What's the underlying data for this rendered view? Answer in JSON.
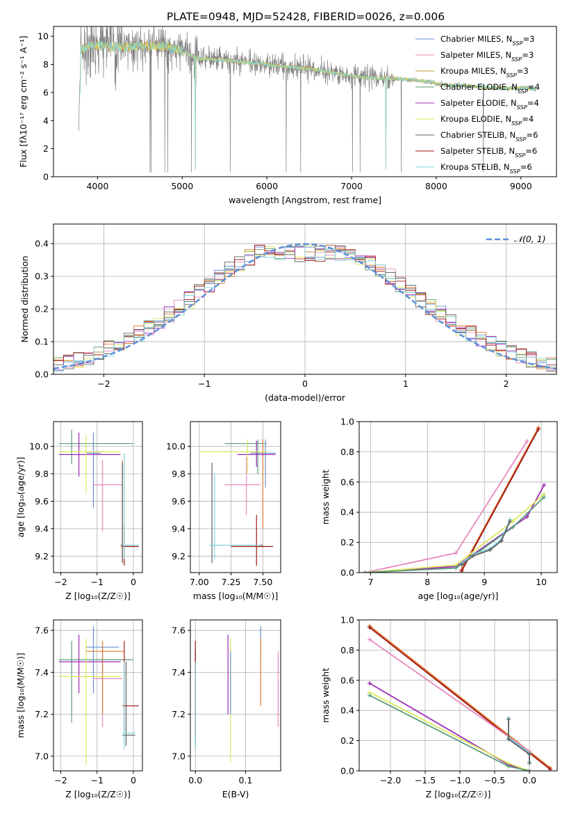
{
  "title": "PLATE=0948, MJD=52428, FIBERID=0026, z=0.006",
  "colors": {
    "chabrier_miles": "#6a8fd8",
    "salpeter_miles": "#e887bd",
    "kroupa_miles": "#c49a36",
    "chabrier_elodie": "#5a9a78",
    "salpeter_elodie": "#9c2ab4",
    "kroupa_elodie": "#dce85a",
    "chabrier_stelib": "#606060",
    "salpeter_stelib": "#a01616",
    "kroupa_stelib": "#80d4d8",
    "normal": "#5b8fd8",
    "orange": "#e0782c"
  },
  "chart_data": [
    {
      "id": "spectrum",
      "type": "line",
      "xlabel": "wavelength [Angstrom, rest frame]",
      "ylabel": "Flux [fλ10⁻¹⁷ erg cm⁻² s⁻¹ A⁻¹]",
      "xlim": [
        3480,
        9420
      ],
      "ylim": [
        0,
        10.7
      ],
      "xticks": [
        4000,
        5000,
        6000,
        7000,
        8000,
        9000
      ],
      "yticks": [
        0,
        2,
        4,
        6,
        8,
        10
      ],
      "grid": false,
      "legend_position": "top-right",
      "continuum": [
        [
          3800,
          9.0
        ],
        [
          3900,
          9.3
        ],
        [
          4000,
          9.4
        ],
        [
          4100,
          9.3
        ],
        [
          4300,
          9.2
        ],
        [
          4500,
          9.3
        ],
        [
          4800,
          9.3
        ],
        [
          5000,
          8.9
        ],
        [
          5200,
          8.4
        ],
        [
          5500,
          8.3
        ],
        [
          5800,
          8.1
        ],
        [
          6000,
          8.0
        ],
        [
          6300,
          7.8
        ],
        [
          6500,
          7.7
        ],
        [
          6700,
          7.5
        ],
        [
          6900,
          7.3
        ],
        [
          7100,
          7.1
        ],
        [
          7300,
          7.0
        ],
        [
          7500,
          7.0
        ],
        [
          7700,
          6.9
        ],
        [
          7900,
          6.8
        ],
        [
          8100,
          6.5
        ],
        [
          8300,
          6.5
        ],
        [
          8500,
          6.4
        ],
        [
          8700,
          6.3
        ],
        [
          8900,
          6.3
        ],
        [
          9100,
          6.3
        ],
        [
          9180,
          6.2
        ]
      ],
      "legend": [
        {
          "label": "Chabrier MILES, N",
          "sub": "SSP",
          "suffix": "=3",
          "color": "#6a8fd8"
        },
        {
          "label": "Salpeter MILES, N",
          "sub": "SSP",
          "suffix": "=3",
          "color": "#e887bd"
        },
        {
          "label": "Kroupa MILES, N",
          "sub": "SSP",
          "suffix": "=3",
          "color": "#c49a36"
        },
        {
          "label": "Chabrier ELODIE, N",
          "sub": "SSP",
          "suffix": "=4",
          "color": "#5a9a78"
        },
        {
          "label": "Salpeter ELODIE, N",
          "sub": "SSP",
          "suffix": "=4",
          "color": "#9c2ab4"
        },
        {
          "label": "Kroupa ELODIE, N",
          "sub": "SSP",
          "suffix": "=4",
          "color": "#dce85a"
        },
        {
          "label": "Chabrier STELIB, N",
          "sub": "SSP",
          "suffix": "=6",
          "color": "#606060"
        },
        {
          "label": "Salpeter STELIB, N",
          "sub": "SSP",
          "suffix": "=6",
          "color": "#a01616"
        },
        {
          "label": "Kroupa STELIB, N",
          "sub": "SSP",
          "suffix": "=6",
          "color": "#80d4d8"
        }
      ]
    },
    {
      "id": "residuals",
      "type": "histogram",
      "xlabel": "(data-model)/error",
      "ylabel": "Normed distribution",
      "xlim": [
        -2.5,
        2.5
      ],
      "ylim": [
        0,
        0.46
      ],
      "xticks": [
        -2,
        -1,
        0,
        1,
        2
      ],
      "yticks": [
        0.0,
        0.1,
        0.2,
        0.3,
        0.4
      ],
      "grid": true,
      "bin_width": 0.1,
      "legend_position": "top-right",
      "legend_label": "𝒩(0, 1)"
    },
    {
      "id": "age_vs_Z",
      "type": "errorbar",
      "xlabel": "Z [log₁₀(Z/Z☉)]",
      "ylabel": "age  [log₁₀(age/yr)]",
      "xlim": [
        -2.2,
        0.25
      ],
      "ylim": [
        9.08,
        10.18
      ],
      "xticks": [
        -2,
        -1,
        0
      ],
      "yticks": [
        9.2,
        9.4,
        9.6,
        9.8,
        10.0
      ],
      "grid": true,
      "points": [
        {
          "color": "#6a8fd8",
          "x": -1.1,
          "xlo": -1.3,
          "xhi": -0.9,
          "y": 9.95,
          "ylo": 9.55,
          "yhi": 10.1
        },
        {
          "color": "#e887bd",
          "x": -0.85,
          "xlo": -1.1,
          "xhi": -0.3,
          "y": 9.72,
          "ylo": 9.38,
          "yhi": 9.9
        },
        {
          "color": "#e0782c",
          "x": -0.3,
          "xlo": -0.35,
          "xhi": -0.25,
          "y": 9.27,
          "ylo": 9.15,
          "yhi": 9.9
        },
        {
          "color": "#5a9a78",
          "x": -1.7,
          "xlo": -2.05,
          "xhi": 0.0,
          "y": 10.02,
          "ylo": 9.87,
          "yhi": 10.12
        },
        {
          "color": "#9c2ab4",
          "x": -1.5,
          "xlo": -2.05,
          "xhi": -0.35,
          "y": 9.94,
          "ylo": 9.78,
          "yhi": 10.1
        },
        {
          "color": "#dce85a",
          "x": -1.3,
          "xlo": -2.05,
          "xhi": -0.35,
          "y": 9.96,
          "ylo": 9.66,
          "yhi": 10.08
        },
        {
          "color": "#606060",
          "x": -0.3,
          "xlo": -0.35,
          "xhi": 0.05,
          "y": 9.28,
          "ylo": 9.15,
          "yhi": 9.88
        },
        {
          "color": "#a01616",
          "x": -0.25,
          "xlo": -0.3,
          "xhi": 0.15,
          "y": 9.27,
          "ylo": 9.13,
          "yhi": 9.42
        },
        {
          "color": "#80d4d8",
          "x": -0.25,
          "xlo": -0.3,
          "xhi": 0.15,
          "y": 9.28,
          "ylo": 9.18,
          "yhi": 9.95
        }
      ]
    },
    {
      "id": "age_vs_mass",
      "type": "errorbar",
      "xlabel": "mass [log₁₀(M/M☉)]",
      "ylabel": "",
      "xlim": [
        6.93,
        7.64
      ],
      "ylim": [
        9.08,
        10.18
      ],
      "xticks": [
        7.0,
        7.25,
        7.5
      ],
      "yticks": [
        9.2,
        9.4,
        9.6,
        9.8,
        10.0
      ],
      "grid": true,
      "points": [
        {
          "color": "#6a8fd8",
          "x": 7.52,
          "xlo": 7.4,
          "xhi": 7.6,
          "y": 9.95,
          "ylo": 9.7,
          "yhi": 10.05
        },
        {
          "color": "#e887bd",
          "x": 7.37,
          "xlo": 7.2,
          "xhi": 7.48,
          "y": 9.72,
          "ylo": 9.5,
          "yhi": 9.92
        },
        {
          "color": "#e0782c",
          "x": 7.5,
          "xlo": 7.47,
          "xhi": 7.53,
          "y": 9.27,
          "ylo": 9.4,
          "yhi": 10.05
        },
        {
          "color": "#5a9a78",
          "x": 7.46,
          "xlo": 7.2,
          "xhi": 7.53,
          "y": 10.02,
          "ylo": 9.8,
          "yhi": 10.05
        },
        {
          "color": "#9c2ab4",
          "x": 7.45,
          "xlo": 7.3,
          "xhi": 7.6,
          "y": 9.94,
          "ylo": 9.85,
          "yhi": 10.04
        },
        {
          "color": "#dce85a",
          "x": 7.38,
          "xlo": 7.0,
          "xhi": 7.53,
          "y": 9.96,
          "ylo": 9.8,
          "yhi": 10.05
        },
        {
          "color": "#606060",
          "x": 7.1,
          "xlo": 7.08,
          "xhi": 7.5,
          "y": 9.28,
          "ylo": 9.15,
          "yhi": 9.88
        },
        {
          "color": "#a01616",
          "x": 7.45,
          "xlo": 7.25,
          "xhi": 7.58,
          "y": 9.27,
          "ylo": 9.13,
          "yhi": 9.5
        },
        {
          "color": "#80d4d8",
          "x": 7.12,
          "xlo": 7.08,
          "xhi": 7.48,
          "y": 9.28,
          "ylo": 9.18,
          "yhi": 9.8
        }
      ]
    },
    {
      "id": "mass_weight_vs_age",
      "type": "line",
      "xlabel": "age  [log₁₀(age/yr)]",
      "ylabel": "mass weight",
      "xlim": [
        6.8,
        10.28
      ],
      "ylim": [
        0,
        1.0
      ],
      "xticks": [
        7,
        8,
        9,
        10
      ],
      "yticks": [
        0.0,
        0.2,
        0.4,
        0.6,
        0.8,
        1.0
      ],
      "grid": true,
      "series": [
        {
          "color": "#e887bd",
          "x": [
            6.9,
            8.5,
            9.75
          ],
          "y": [
            0.0,
            0.13,
            0.87
          ]
        },
        {
          "color": "#e0782c",
          "x": [
            8.6,
            9.95
          ],
          "y": [
            0.02,
            0.96
          ]
        },
        {
          "color": "#a01616",
          "x": [
            8.6,
            9.95
          ],
          "y": [
            0.01,
            0.95
          ]
        },
        {
          "color": "#9c2ab4",
          "x": [
            6.9,
            8.5,
            9.75,
            10.05
          ],
          "y": [
            0.0,
            0.04,
            0.37,
            0.58
          ]
        },
        {
          "color": "#dce85a",
          "x": [
            6.9,
            8.5,
            9.5,
            10.05
          ],
          "y": [
            0.0,
            0.05,
            0.34,
            0.52
          ]
        },
        {
          "color": "#5a9a78",
          "x": [
            6.9,
            8.5,
            9.5,
            10.05
          ],
          "y": [
            0.0,
            0.03,
            0.3,
            0.5
          ]
        },
        {
          "color": "#80d4d8",
          "x": [
            8.6,
            8.8,
            9.1,
            9.3,
            9.45
          ],
          "y": [
            0.06,
            0.12,
            0.16,
            0.22,
            0.35
          ]
        },
        {
          "color": "#606060",
          "x": [
            8.6,
            8.8,
            9.1,
            9.3,
            9.45
          ],
          "y": [
            0.05,
            0.11,
            0.15,
            0.21,
            0.34
          ]
        }
      ]
    },
    {
      "id": "mass_vs_Z",
      "type": "errorbar",
      "xlabel": "Z [log₁₀(Z/Z☉)]",
      "ylabel": "mass [log₁₀(M/M☉)]",
      "xlim": [
        -2.2,
        0.25
      ],
      "ylim": [
        6.93,
        7.65
      ],
      "xticks": [
        -2,
        -1,
        0
      ],
      "yticks": [
        7.0,
        7.2,
        7.4,
        7.6
      ],
      "grid": true,
      "points": [
        {
          "color": "#6a8fd8",
          "x": -1.1,
          "xlo": -1.3,
          "xhi": -0.4,
          "y": 7.52,
          "ylo": 7.3,
          "yhi": 7.62
        },
        {
          "color": "#e887bd",
          "x": -0.85,
          "xlo": -1.1,
          "xhi": -0.3,
          "y": 7.37,
          "ylo": 7.14,
          "yhi": 7.52
        },
        {
          "color": "#e0782c",
          "x": -0.85,
          "xlo": -1.3,
          "xhi": -0.25,
          "y": 7.5,
          "ylo": 7.2,
          "yhi": 7.55
        },
        {
          "color": "#5a9a78",
          "x": -1.7,
          "xlo": -2.05,
          "xhi": 0.0,
          "y": 7.46,
          "ylo": 7.16,
          "yhi": 7.55
        },
        {
          "color": "#9c2ab4",
          "x": -1.5,
          "xlo": -2.05,
          "xhi": -0.35,
          "y": 7.45,
          "ylo": 7.3,
          "yhi": 7.58
        },
        {
          "color": "#dce85a",
          "x": -1.3,
          "xlo": -2.05,
          "xhi": -0.35,
          "y": 7.38,
          "ylo": 6.96,
          "yhi": 7.56
        },
        {
          "color": "#606060",
          "x": -0.2,
          "xlo": -0.3,
          "xhi": 0.05,
          "y": 7.1,
          "ylo": 7.05,
          "yhi": 7.45
        },
        {
          "color": "#a01616",
          "x": -0.25,
          "xlo": -0.3,
          "xhi": 0.15,
          "y": 7.24,
          "ylo": 7.12,
          "yhi": 7.55
        },
        {
          "color": "#80d4d8",
          "x": -0.25,
          "xlo": -0.3,
          "xhi": 0.05,
          "y": 7.11,
          "ylo": 7.03,
          "yhi": 7.45
        }
      ]
    },
    {
      "id": "mass_vs_ebv",
      "type": "errorbar",
      "xlabel": "E(B-V)",
      "ylabel": "",
      "xlim": [
        -0.01,
        0.17
      ],
      "ylim": [
        6.93,
        7.65
      ],
      "xticks": [
        0.0,
        0.1
      ],
      "yticks": [
        7.0,
        7.2,
        7.4,
        7.6
      ],
      "grid": true,
      "points": [
        {
          "color": "#6a8fd8",
          "x": 0.13,
          "xlo": 0.13,
          "xhi": 0.13,
          "y": 7.52,
          "ylo": 7.45,
          "yhi": 7.62
        },
        {
          "color": "#e887bd",
          "x": 0.165,
          "xlo": 0.165,
          "xhi": 0.165,
          "y": 7.37,
          "ylo": 7.14,
          "yhi": 7.5
        },
        {
          "color": "#e0782c",
          "x": 0.13,
          "xlo": 0.13,
          "xhi": 0.13,
          "y": 7.5,
          "ylo": 7.24,
          "yhi": 7.56
        },
        {
          "color": "#5a9a78",
          "x": 0.0,
          "xlo": 0.0,
          "xhi": 0.0,
          "y": 7.46,
          "ylo": 7.1,
          "yhi": 7.5
        },
        {
          "color": "#9c2ab4",
          "x": 0.065,
          "xlo": 0.065,
          "xhi": 0.065,
          "y": 7.45,
          "ylo": 7.2,
          "yhi": 7.58
        },
        {
          "color": "#dce85a",
          "x": 0.07,
          "xlo": 0.07,
          "xhi": 0.07,
          "y": 7.38,
          "ylo": 6.97,
          "yhi": 7.56
        },
        {
          "color": "#606060",
          "x": 0.0,
          "xlo": 0.0,
          "xhi": 0.0,
          "y": 7.3,
          "ylo": 7.05,
          "yhi": 7.5
        },
        {
          "color": "#a01616",
          "x": 0.0,
          "xlo": 0.0,
          "xhi": 0.0,
          "y": 7.3,
          "ylo": 7.1,
          "yhi": 7.55
        },
        {
          "color": "#80d4d8",
          "x": 0.0,
          "xlo": 0.0,
          "xhi": 0.0,
          "y": 7.25,
          "ylo": 7.03,
          "yhi": 7.45
        },
        {
          "color": "#6a8fd8",
          "x": 0.07,
          "xlo": 0.07,
          "xhi": 0.07,
          "y": 7.3,
          "ylo": 7.2,
          "yhi": 7.5
        }
      ]
    },
    {
      "id": "mass_weight_vs_Z",
      "type": "line",
      "xlabel": "Z [log₁₀(Z/Z☉)]",
      "ylabel": "mass weight",
      "xlim": [
        -2.45,
        0.4
      ],
      "ylim": [
        0,
        1.0
      ],
      "xticks": [
        -2.0,
        -1.5,
        -1.0,
        -0.5,
        0.0
      ],
      "yticks": [
        0.0,
        0.2,
        0.4,
        0.6,
        0.8,
        1.0
      ],
      "grid": true,
      "series": [
        {
          "color": "#e0782c",
          "x": [
            -2.3,
            0.3
          ],
          "y": [
            0.96,
            0.02
          ]
        },
        {
          "color": "#a01616",
          "x": [
            -2.3,
            0.3
          ],
          "y": [
            0.95,
            0.01
          ]
        },
        {
          "color": "#e887bd",
          "x": [
            -2.3,
            0.0
          ],
          "y": [
            0.87,
            0.13
          ]
        },
        {
          "color": "#9c2ab4",
          "x": [
            -2.3,
            -0.3,
            0.0
          ],
          "y": [
            0.58,
            0.04,
            0.0
          ]
        },
        {
          "color": "#dce85a",
          "x": [
            -2.3,
            -0.3,
            0.0
          ],
          "y": [
            0.52,
            0.05,
            0.0
          ]
        },
        {
          "color": "#5a9a78",
          "x": [
            -2.3,
            -0.3,
            0.0
          ],
          "y": [
            0.5,
            0.03,
            0.0
          ]
        },
        {
          "color": "#80d4d8",
          "x": [
            -0.3,
            -0.3,
            0.0,
            0.0
          ],
          "y": [
            0.35,
            0.22,
            0.12,
            0.06
          ]
        },
        {
          "color": "#606060",
          "x": [
            -0.3,
            -0.3,
            0.0,
            0.0
          ],
          "y": [
            0.34,
            0.21,
            0.11,
            0.05
          ]
        }
      ]
    }
  ]
}
